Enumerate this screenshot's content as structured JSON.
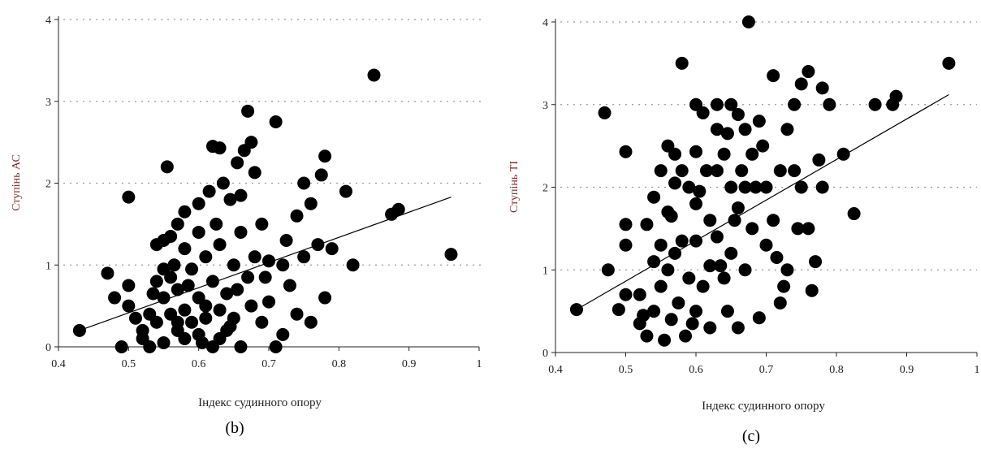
{
  "chart_data": [
    {
      "type": "scatter",
      "caption": "(b)",
      "xlabel": "Індекс судинного опору",
      "ylabel": "Ступінь АС",
      "xlim": [
        0.4,
        1.0
      ],
      "ylim": [
        0,
        4
      ],
      "xticks": [
        "0.4",
        "0.5",
        "0.6",
        "0.7",
        "0.8",
        "0.9",
        "1"
      ],
      "yticks": [
        "0",
        "1",
        "2",
        "3",
        "4"
      ],
      "grid": "horizontal dotted",
      "trendline": {
        "x": [
          0.43,
          0.96
        ],
        "y": [
          0.2,
          1.83
        ]
      },
      "points": [
        [
          0.43,
          0.2
        ],
        [
          0.47,
          0.9
        ],
        [
          0.48,
          0.6
        ],
        [
          0.49,
          0.0
        ],
        [
          0.5,
          1.83
        ],
        [
          0.5,
          0.75
        ],
        [
          0.5,
          0.5
        ],
        [
          0.51,
          0.35
        ],
        [
          0.52,
          0.2
        ],
        [
          0.52,
          0.1
        ],
        [
          0.53,
          0.4
        ],
        [
          0.53,
          0.0
        ],
        [
          0.54,
          1.25
        ],
        [
          0.54,
          0.8
        ],
        [
          0.54,
          0.3
        ],
        [
          0.55,
          1.3
        ],
        [
          0.55,
          0.95
        ],
        [
          0.55,
          0.6
        ],
        [
          0.55,
          0.05
        ],
        [
          0.555,
          2.2
        ],
        [
          0.56,
          1.35
        ],
        [
          0.56,
          0.85
        ],
        [
          0.56,
          0.4
        ],
        [
          0.565,
          1.0
        ],
        [
          0.57,
          1.5
        ],
        [
          0.57,
          0.7
        ],
        [
          0.57,
          0.2
        ],
        [
          0.58,
          1.65
        ],
        [
          0.58,
          1.2
        ],
        [
          0.58,
          0.45
        ],
        [
          0.58,
          0.1
        ],
        [
          0.59,
          0.95
        ],
        [
          0.59,
          0.3
        ],
        [
          0.6,
          1.75
        ],
        [
          0.6,
          1.4
        ],
        [
          0.6,
          0.6
        ],
        [
          0.6,
          0.15
        ],
        [
          0.61,
          1.1
        ],
        [
          0.61,
          0.35
        ],
        [
          0.615,
          1.9
        ],
        [
          0.62,
          2.45
        ],
        [
          0.62,
          0.8
        ],
        [
          0.62,
          0.0
        ],
        [
          0.625,
          1.5
        ],
        [
          0.63,
          2.43
        ],
        [
          0.63,
          1.25
        ],
        [
          0.63,
          0.45
        ],
        [
          0.635,
          2.0
        ],
        [
          0.64,
          0.65
        ],
        [
          0.64,
          0.2
        ],
        [
          0.645,
          1.8
        ],
        [
          0.65,
          1.0
        ],
        [
          0.65,
          0.35
        ],
        [
          0.655,
          2.25
        ],
        [
          0.66,
          1.4
        ],
        [
          0.66,
          0.0
        ],
        [
          0.665,
          2.4
        ],
        [
          0.67,
          2.88
        ],
        [
          0.67,
          0.85
        ],
        [
          0.675,
          2.5
        ],
        [
          0.675,
          0.5
        ],
        [
          0.68,
          2.13
        ],
        [
          0.68,
          1.1
        ],
        [
          0.69,
          1.5
        ],
        [
          0.69,
          0.3
        ],
        [
          0.7,
          1.05
        ],
        [
          0.7,
          0.55
        ],
        [
          0.71,
          2.75
        ],
        [
          0.71,
          0.0
        ],
        [
          0.72,
          1.0
        ],
        [
          0.72,
          0.15
        ],
        [
          0.725,
          1.3
        ],
        [
          0.73,
          0.75
        ],
        [
          0.74,
          1.6
        ],
        [
          0.74,
          0.4
        ],
        [
          0.75,
          2.0
        ],
        [
          0.75,
          1.1
        ],
        [
          0.76,
          1.75
        ],
        [
          0.76,
          0.3
        ],
        [
          0.77,
          1.25
        ],
        [
          0.775,
          2.1
        ],
        [
          0.78,
          2.33
        ],
        [
          0.78,
          0.6
        ],
        [
          0.79,
          1.2
        ],
        [
          0.81,
          1.9
        ],
        [
          0.82,
          1.0
        ],
        [
          0.85,
          3.32
        ],
        [
          0.875,
          1.62
        ],
        [
          0.885,
          1.68
        ],
        [
          0.96,
          1.13
        ],
        [
          0.535,
          0.65
        ],
        [
          0.585,
          0.75
        ],
        [
          0.605,
          0.05
        ],
        [
          0.645,
          0.25
        ],
        [
          0.695,
          0.85
        ],
        [
          0.66,
          1.85
        ],
        [
          0.61,
          0.5
        ],
        [
          0.57,
          0.3
        ],
        [
          0.63,
          0.1
        ],
        [
          0.655,
          0.7
        ]
      ]
    },
    {
      "type": "scatter",
      "caption": "(c)",
      "xlabel": "Індекс судинного опору",
      "ylabel": "Ступінь ТІ",
      "xlim": [
        0.4,
        1.0
      ],
      "ylim": [
        0,
        4
      ],
      "xticks": [
        "0.4",
        "0.5",
        "0.6",
        "0.7",
        "0.8",
        "0.9",
        "1"
      ],
      "yticks": [
        "0",
        "1",
        "2",
        "3",
        "4"
      ],
      "grid": "horizontal dotted",
      "trendline": {
        "x": [
          0.43,
          0.96
        ],
        "y": [
          0.52,
          3.12
        ]
      },
      "points": [
        [
          0.43,
          0.52
        ],
        [
          0.47,
          2.9
        ],
        [
          0.475,
          1.0
        ],
        [
          0.49,
          0.52
        ],
        [
          0.5,
          2.43
        ],
        [
          0.5,
          1.55
        ],
        [
          0.5,
          1.3
        ],
        [
          0.5,
          0.7
        ],
        [
          0.52,
          0.7
        ],
        [
          0.52,
          0.35
        ],
        [
          0.53,
          1.55
        ],
        [
          0.53,
          0.2
        ],
        [
          0.54,
          1.88
        ],
        [
          0.54,
          1.1
        ],
        [
          0.54,
          0.5
        ],
        [
          0.55,
          2.2
        ],
        [
          0.55,
          1.3
        ],
        [
          0.55,
          0.8
        ],
        [
          0.555,
          0.15
        ],
        [
          0.56,
          2.5
        ],
        [
          0.56,
          1.7
        ],
        [
          0.56,
          1.0
        ],
        [
          0.565,
          0.4
        ],
        [
          0.57,
          2.4
        ],
        [
          0.57,
          2.05
        ],
        [
          0.57,
          1.2
        ],
        [
          0.575,
          0.6
        ],
        [
          0.58,
          3.5
        ],
        [
          0.58,
          2.2
        ],
        [
          0.58,
          1.35
        ],
        [
          0.585,
          0.2
        ],
        [
          0.59,
          2.0
        ],
        [
          0.59,
          0.9
        ],
        [
          0.6,
          3.0
        ],
        [
          0.6,
          2.43
        ],
        [
          0.6,
          1.8
        ],
        [
          0.6,
          1.35
        ],
        [
          0.6,
          0.5
        ],
        [
          0.61,
          2.9
        ],
        [
          0.61,
          0.8
        ],
        [
          0.615,
          2.2
        ],
        [
          0.62,
          1.6
        ],
        [
          0.62,
          1.05
        ],
        [
          0.62,
          0.3
        ],
        [
          0.63,
          3.0
        ],
        [
          0.63,
          2.7
        ],
        [
          0.63,
          2.2
        ],
        [
          0.63,
          1.4
        ],
        [
          0.64,
          2.4
        ],
        [
          0.64,
          0.9
        ],
        [
          0.645,
          0.5
        ],
        [
          0.65,
          3.0
        ],
        [
          0.65,
          2.0
        ],
        [
          0.65,
          1.2
        ],
        [
          0.66,
          2.88
        ],
        [
          0.66,
          1.75
        ],
        [
          0.66,
          0.3
        ],
        [
          0.665,
          2.2
        ],
        [
          0.67,
          2.7
        ],
        [
          0.67,
          2.0
        ],
        [
          0.67,
          1.0
        ],
        [
          0.675,
          4.0
        ],
        [
          0.68,
          2.4
        ],
        [
          0.68,
          1.5
        ],
        [
          0.69,
          2.8
        ],
        [
          0.69,
          0.42
        ],
        [
          0.7,
          2.0
        ],
        [
          0.7,
          1.3
        ],
        [
          0.71,
          3.35
        ],
        [
          0.71,
          1.6
        ],
        [
          0.72,
          2.2
        ],
        [
          0.72,
          0.6
        ],
        [
          0.73,
          2.7
        ],
        [
          0.73,
          1.0
        ],
        [
          0.74,
          3.0
        ],
        [
          0.74,
          2.2
        ],
        [
          0.745,
          1.5
        ],
        [
          0.75,
          3.25
        ],
        [
          0.75,
          2.0
        ],
        [
          0.76,
          3.4
        ],
        [
          0.76,
          1.5
        ],
        [
          0.765,
          0.75
        ],
        [
          0.77,
          1.1
        ],
        [
          0.775,
          2.33
        ],
        [
          0.78,
          3.2
        ],
        [
          0.78,
          2.0
        ],
        [
          0.79,
          3.0
        ],
        [
          0.81,
          2.4
        ],
        [
          0.825,
          1.68
        ],
        [
          0.855,
          3.0
        ],
        [
          0.88,
          3.0
        ],
        [
          0.885,
          3.1
        ],
        [
          0.96,
          3.5
        ],
        [
          0.525,
          0.45
        ],
        [
          0.565,
          1.65
        ],
        [
          0.595,
          0.35
        ],
        [
          0.635,
          1.05
        ],
        [
          0.655,
          1.6
        ],
        [
          0.685,
          2.0
        ],
        [
          0.715,
          1.15
        ],
        [
          0.725,
          0.8
        ],
        [
          0.605,
          1.95
        ],
        [
          0.645,
          2.65
        ],
        [
          0.695,
          2.5
        ]
      ]
    }
  ]
}
